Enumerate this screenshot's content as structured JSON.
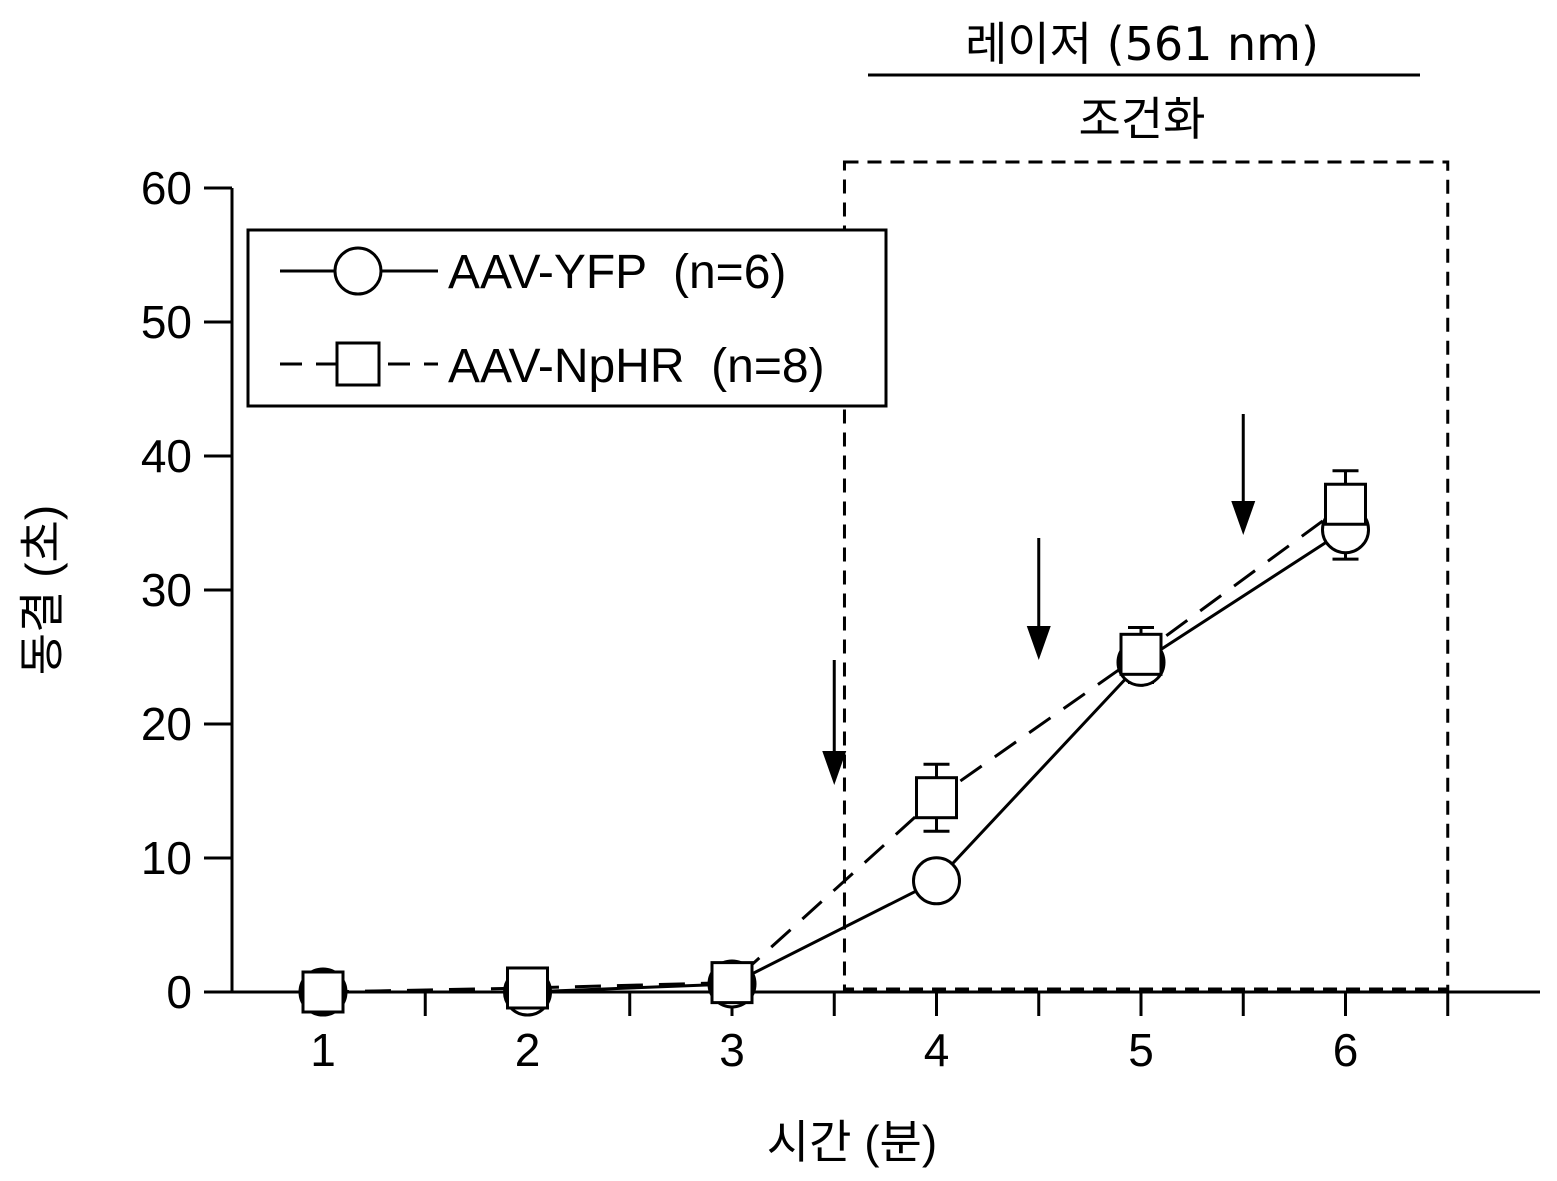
{
  "chart_data": {
    "type": "line",
    "header": {
      "top": "레이저 (561 nm)",
      "bottom": "조건화"
    },
    "xlabel": "시간 (분)",
    "ylabel": "동결 (초)",
    "x": [
      1,
      2,
      3,
      4,
      5,
      6
    ],
    "x_ticks": [
      "1",
      "2",
      "3",
      "4",
      "5",
      "6"
    ],
    "y_ticks": [
      "0",
      "10",
      "20",
      "30",
      "40",
      "50",
      "60"
    ],
    "xlim": [
      0.5,
      7.0
    ],
    "ylim": [
      0,
      60
    ],
    "grid": false,
    "legend_position": "top-left",
    "laser_window": [
      3.55,
      6.5
    ],
    "arrows_at": [
      3.5,
      4.5,
      5.5
    ],
    "series": [
      {
        "name": "AAV-YFP  (n=6)",
        "marker": "circle",
        "line": "solid",
        "values": [
          0,
          0,
          0.6,
          8.3,
          24.6,
          34.5
        ],
        "error": [
          0,
          0,
          0,
          0,
          1.5,
          2.2
        ]
      },
      {
        "name": "AAV-NpHR  (n=8)",
        "marker": "square",
        "line": "dashed",
        "values": [
          0,
          0.3,
          0.7,
          14.5,
          25.2,
          36.4
        ],
        "error": [
          0,
          0,
          0,
          2.5,
          2.0,
          2.5
        ]
      }
    ]
  }
}
